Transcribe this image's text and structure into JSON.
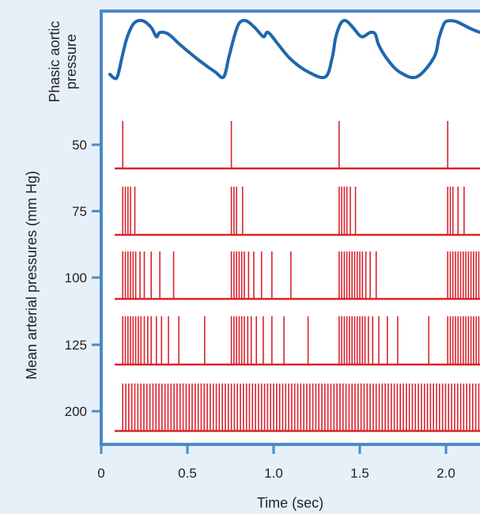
{
  "chart_data": {
    "type": "line",
    "xlabel": "Time (sec)",
    "ylabel": "Mean arterial pressures (mm Hg)",
    "xlim": [
      0,
      2.2
    ],
    "x_ticks": [
      "0",
      "0.5",
      "1.0",
      "1.5",
      "2.0"
    ],
    "x_tick_values": [
      0,
      0.5,
      1.0,
      1.5,
      2.0
    ],
    "aortic_trace": {
      "label": "Phasic aortic pressure",
      "x": [
        0.05,
        0.09,
        0.12,
        0.15,
        0.19,
        0.24,
        0.29,
        0.32,
        0.34,
        0.39,
        0.46,
        0.56,
        0.66,
        0.71,
        0.74,
        0.77,
        0.8,
        0.84,
        0.89,
        0.94,
        0.96,
        0.98,
        1.03,
        1.1,
        1.2,
        1.3,
        1.34,
        1.36,
        1.39,
        1.42,
        1.46,
        1.51,
        1.56,
        1.59,
        1.61,
        1.66,
        1.73,
        1.83,
        1.93,
        1.96,
        1.99,
        2.02,
        2.06,
        2.11,
        2.16,
        2.2
      ],
      "y": [
        0.32,
        0.28,
        0.52,
        0.76,
        0.93,
        0.96,
        0.88,
        0.77,
        0.82,
        0.8,
        0.67,
        0.5,
        0.35,
        0.29,
        0.52,
        0.76,
        0.93,
        0.96,
        0.88,
        0.77,
        0.82,
        0.8,
        0.67,
        0.5,
        0.35,
        0.29,
        0.52,
        0.76,
        0.93,
        0.96,
        0.88,
        0.77,
        0.82,
        0.8,
        0.67,
        0.5,
        0.35,
        0.29,
        0.52,
        0.76,
        0.93,
        0.96,
        0.95,
        0.9,
        0.85,
        0.82
      ]
    },
    "series": [
      {
        "name": "50",
        "spikes": [
          0.125,
          0.755,
          1.38,
          2.01
        ]
      },
      {
        "name": "75",
        "spikes": [
          0.125,
          0.14,
          0.155,
          0.17,
          0.195,
          0.755,
          0.77,
          0.785,
          0.82,
          1.38,
          1.395,
          1.41,
          1.425,
          1.445,
          1.475,
          2.01,
          2.025,
          2.04,
          2.07,
          2.105
        ]
      },
      {
        "name": "100",
        "spikes": [
          0.125,
          0.14,
          0.155,
          0.17,
          0.185,
          0.2,
          0.225,
          0.25,
          0.29,
          0.34,
          0.42,
          0.755,
          0.77,
          0.785,
          0.8,
          0.815,
          0.83,
          0.855,
          0.885,
          0.93,
          0.99,
          1.1,
          1.38,
          1.395,
          1.41,
          1.425,
          1.44,
          1.455,
          1.47,
          1.485,
          1.5,
          1.515,
          1.535,
          1.56,
          1.595,
          2.01,
          2.025,
          2.04,
          2.055,
          2.07,
          2.085,
          2.1,
          2.115,
          2.13,
          2.145,
          2.16,
          2.175,
          2.19
        ]
      },
      {
        "name": "125",
        "spikes": [
          0.125,
          0.14,
          0.155,
          0.17,
          0.185,
          0.2,
          0.215,
          0.23,
          0.25,
          0.27,
          0.29,
          0.32,
          0.35,
          0.39,
          0.45,
          0.6,
          0.755,
          0.77,
          0.785,
          0.8,
          0.815,
          0.83,
          0.85,
          0.87,
          0.9,
          0.94,
          0.99,
          1.06,
          1.2,
          1.38,
          1.395,
          1.41,
          1.425,
          1.44,
          1.455,
          1.47,
          1.485,
          1.5,
          1.515,
          1.53,
          1.55,
          1.575,
          1.61,
          1.66,
          1.72,
          1.9,
          2.01,
          2.025,
          2.04,
          2.055,
          2.07,
          2.085,
          2.1,
          2.115,
          2.13,
          2.145,
          2.16,
          2.175,
          2.19
        ]
      },
      {
        "name": "200",
        "spacing": 0.0175,
        "start": 0.125,
        "end": 2.19
      }
    ],
    "y_ticks": [
      "50",
      "75",
      "100",
      "125",
      "200"
    ],
    "aortic_label": "Phasic aortic pressure"
  }
}
